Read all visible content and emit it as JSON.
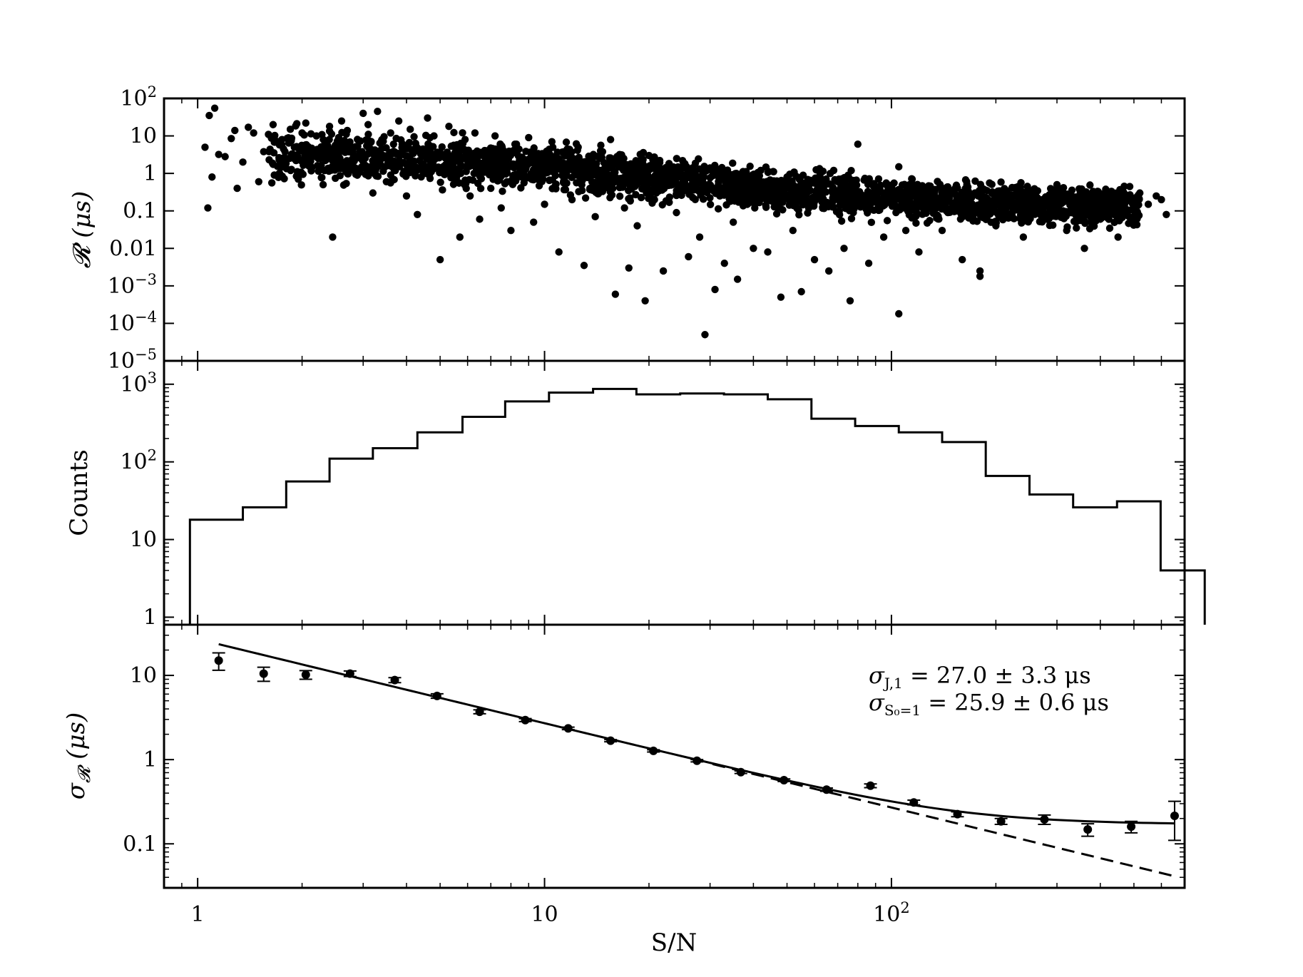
{
  "chart_data": [
    {
      "type": "scatter",
      "panel": "top",
      "ylabel_symbol": "𝓡",
      "ylabel_unit": "(μs)",
      "xscale": "log",
      "yscale": "log",
      "xlim": [
        0.8,
        700
      ],
      "ylim": [
        1e-05,
        100
      ],
      "y_tick_values": [
        1e-05,
        0.0001,
        0.001,
        0.01,
        0.1,
        1,
        10,
        100
      ],
      "y_tick_labels": [
        {
          "base": "10",
          "exp": "−5"
        },
        {
          "base": "10",
          "exp": "−4"
        },
        {
          "base": "10",
          "exp": "−3"
        },
        {
          "base": "0.01",
          "exp": ""
        },
        {
          "base": "0.1",
          "exp": ""
        },
        {
          "base": "1",
          "exp": ""
        },
        {
          "base": "10",
          "exp": ""
        },
        {
          "base": "10",
          "exp": "2"
        }
      ],
      "points": [
        [
          1.05,
          5.0
        ],
        [
          1.08,
          35
        ],
        [
          1.12,
          55
        ],
        [
          1.1,
          0.8
        ],
        [
          1.15,
          3.2
        ],
        [
          1.2,
          2.8
        ],
        [
          1.25,
          8.5
        ],
        [
          1.28,
          14
        ],
        [
          1.3,
          0.4
        ],
        [
          1.07,
          0.12
        ],
        [
          1.35,
          2.0
        ],
        [
          1.4,
          17
        ],
        [
          1.45,
          12
        ],
        [
          1.5,
          0.6
        ],
        [
          1.55,
          3.8
        ],
        [
          1.6,
          11
        ],
        [
          1.65,
          20
        ],
        [
          1.7,
          0.9
        ],
        [
          1.75,
          8
        ],
        [
          1.8,
          2.5
        ],
        [
          1.85,
          15
        ],
        [
          1.9,
          5
        ],
        [
          1.95,
          0.7
        ],
        [
          2.0,
          12
        ],
        [
          2.05,
          22
        ],
        [
          2.1,
          4
        ],
        [
          2.2,
          10
        ],
        [
          2.25,
          1.5
        ],
        [
          2.3,
          0.5
        ],
        [
          2.35,
          7
        ],
        [
          2.4,
          18
        ],
        [
          2.45,
          0.02
        ],
        [
          2.5,
          3
        ],
        [
          2.55,
          9
        ],
        [
          2.6,
          25
        ],
        [
          2.7,
          14
        ],
        [
          2.8,
          4
        ],
        [
          2.9,
          1.2
        ],
        [
          3.0,
          40
        ],
        [
          3.1,
          20
        ],
        [
          3.2,
          0.3
        ],
        [
          3.3,
          45
        ],
        [
          3.4,
          8
        ],
        [
          3.5,
          0.6
        ],
        [
          3.6,
          12
        ],
        [
          3.7,
          2
        ],
        [
          3.8,
          25
        ],
        [
          3.9,
          6
        ],
        [
          4.0,
          0.25
        ],
        [
          4.1,
          15
        ],
        [
          4.3,
          0.08
        ],
        [
          4.5,
          3
        ],
        [
          4.6,
          30
        ],
        [
          4.8,
          10
        ],
        [
          5.0,
          0.005
        ],
        [
          5.1,
          1.5
        ],
        [
          5.3,
          18
        ],
        [
          5.5,
          0.9
        ],
        [
          5.7,
          0.02
        ],
        [
          5.9,
          8
        ],
        [
          6.1,
          0.25
        ],
        [
          6.3,
          12
        ],
        [
          6.5,
          0.06
        ],
        [
          6.8,
          4
        ],
        [
          7.0,
          0.4
        ],
        [
          7.2,
          10
        ],
        [
          7.5,
          0.12
        ],
        [
          7.8,
          2.5
        ],
        [
          8.0,
          0.03
        ],
        [
          8.3,
          6
        ],
        [
          8.6,
          0.8
        ],
        [
          9.0,
          9
        ],
        [
          9.3,
          0.05
        ],
        [
          9.7,
          3
        ],
        [
          10.0,
          0.15
        ],
        [
          10.5,
          7
        ],
        [
          11.0,
          0.008
        ],
        [
          11.5,
          1.8
        ],
        [
          12.0,
          0.2
        ],
        [
          12.5,
          5
        ],
        [
          13.0,
          0.0035
        ],
        [
          13.5,
          1.2
        ],
        [
          14.0,
          0.07
        ],
        [
          14.5,
          4
        ],
        [
          15.0,
          0.5
        ],
        [
          15.5,
          8
        ],
        [
          16.0,
          0.0006
        ],
        [
          16.5,
          2
        ],
        [
          17.0,
          0.12
        ],
        [
          17.5,
          0.003
        ],
        [
          18.0,
          1.5
        ],
        [
          18.5,
          0.04
        ],
        [
          19.5,
          0.0004
        ],
        [
          20.0,
          3
        ],
        [
          21.0,
          0.3
        ],
        [
          22.0,
          0.0025
        ],
        [
          23.0,
          1.0
        ],
        [
          24.0,
          0.09
        ],
        [
          25.0,
          2.2
        ],
        [
          26.0,
          0.006
        ],
        [
          27.0,
          0.6
        ],
        [
          28.0,
          0.02
        ],
        [
          29.0,
          5e-05
        ],
        [
          30.0,
          1.4
        ],
        [
          31.0,
          0.0008
        ],
        [
          32.0,
          0.25
        ],
        [
          33.0,
          0.004
        ],
        [
          34.0,
          0.9
        ],
        [
          35.0,
          0.05
        ],
        [
          36.0,
          0.0015
        ],
        [
          38.0,
          0.6
        ],
        [
          40.0,
          0.01
        ],
        [
          42.0,
          1.2
        ],
        [
          44.0,
          0.008
        ],
        [
          46.0,
          0.3
        ],
        [
          48.0,
          0.0005
        ],
        [
          50.0,
          0.8
        ],
        [
          52.0,
          0.03
        ],
        [
          55.0,
          0.0007
        ],
        [
          58.0,
          0.5
        ],
        [
          60.0,
          0.005
        ],
        [
          63.0,
          0.2
        ],
        [
          66.0,
          0.0025
        ],
        [
          70.0,
          0.6
        ],
        [
          73.0,
          0.01
        ],
        [
          76.0,
          0.0004
        ],
        [
          80.0,
          6.0
        ],
        [
          83.0,
          0.15
        ],
        [
          86.0,
          0.004
        ],
        [
          90.0,
          0.4
        ],
        [
          95.0,
          0.02
        ],
        [
          100.0,
          0.3
        ],
        [
          105.0,
          0.00018
        ],
        [
          105.0,
          1.5
        ],
        [
          110.0,
          0.03
        ],
        [
          115.0,
          0.25
        ],
        [
          120.0,
          0.008
        ],
        [
          130.0,
          0.2
        ],
        [
          140.0,
          0.03
        ],
        [
          150.0,
          0.15
        ],
        [
          160.0,
          0.005
        ],
        [
          170.0,
          0.12
        ],
        [
          180.0,
          0.0025
        ],
        [
          180.0,
          0.0018
        ],
        [
          190.0,
          0.1
        ],
        [
          200.0,
          0.04
        ],
        [
          220.0,
          0.15
        ],
        [
          240.0,
          0.02
        ],
        [
          260.0,
          0.2
        ],
        [
          280.0,
          0.06
        ],
        [
          300.0,
          0.25
        ],
        [
          320.0,
          0.03
        ],
        [
          340.0,
          0.15
        ],
        [
          360.0,
          0.01
        ],
        [
          380.0,
          0.2
        ],
        [
          400.0,
          0.06
        ],
        [
          420.0,
          0.15
        ],
        [
          450.0,
          0.02
        ],
        [
          480.0,
          0.1
        ],
        [
          500.0,
          0.05
        ],
        [
          520.0,
          0.3
        ],
        [
          550.0,
          0.15
        ],
        [
          580.0,
          0.25
        ],
        [
          600.0,
          0.2
        ],
        [
          620.0,
          0.08
        ],
        [
          300.0,
          0.5
        ],
        [
          250.0,
          0.35
        ],
        [
          200.0,
          0.25
        ],
        [
          150.0,
          0.3
        ],
        [
          120.0,
          0.4
        ]
      ],
      "band": [
        [
          1.6,
          3.2
        ],
        [
          2.2,
          2.8
        ],
        [
          3,
          2.6
        ],
        [
          4,
          2.4
        ],
        [
          5.5,
          2.1
        ],
        [
          7.5,
          1.8
        ],
        [
          10,
          1.5
        ],
        [
          14,
          1.1
        ],
        [
          20,
          0.8
        ],
        [
          28,
          0.55
        ],
        [
          40,
          0.4
        ],
        [
          56,
          0.3
        ],
        [
          80,
          0.25
        ],
        [
          110,
          0.2
        ],
        [
          160,
          0.17
        ],
        [
          230,
          0.15
        ],
        [
          330,
          0.14
        ],
        [
          480,
          0.13
        ]
      ]
    },
    {
      "type": "histogram",
      "panel": "middle",
      "ylabel": "Counts",
      "xscale": "log",
      "yscale": "log",
      "ylim": [
        0.8,
        2000
      ],
      "y_tick_values": [
        1,
        10,
        100,
        1000
      ],
      "y_tick_labels": [
        {
          "base": "1",
          "exp": ""
        },
        {
          "base": "10",
          "exp": ""
        },
        {
          "base": "10",
          "exp": "2"
        },
        {
          "base": "10",
          "exp": "3"
        }
      ],
      "bin_edges": [
        0.95,
        1.35,
        1.8,
        2.4,
        3.2,
        4.3,
        5.8,
        7.7,
        10.3,
        13.8,
        18.4,
        24.6,
        32.9,
        44,
        58.8,
        78.6,
        105,
        140,
        187,
        250,
        334,
        447,
        597
      ],
      "counts": [
        18,
        26,
        56,
        110,
        150,
        240,
        380,
        600,
        780,
        870,
        740,
        760,
        740,
        640,
        360,
        290,
        240,
        180,
        66,
        38,
        26,
        31,
        4
      ],
      "last_edge": 800
    },
    {
      "type": "line",
      "panel": "bottom",
      "xlabel": "S/N",
      "ylabel_symbol": "σ",
      "ylabel_sub": "𝓡",
      "ylabel_unit": "(μs)",
      "xscale": "log",
      "yscale": "log",
      "ylim": [
        0.03,
        40
      ],
      "y_tick_values": [
        0.1,
        1,
        10
      ],
      "y_tick_labels": [
        {
          "base": "0.1",
          "exp": ""
        },
        {
          "base": "1",
          "exp": ""
        },
        {
          "base": "10",
          "exp": ""
        }
      ],
      "x_tick_values": [
        1,
        10,
        100
      ],
      "x_tick_labels": [
        {
          "base": "1",
          "exp": ""
        },
        {
          "base": "10",
          "exp": ""
        },
        {
          "base": "10",
          "exp": "2"
        }
      ],
      "measurements": [
        {
          "x": 1.15,
          "y": 15,
          "err": 3.5
        },
        {
          "x": 1.55,
          "y": 10.5,
          "err": 2.0
        },
        {
          "x": 2.05,
          "y": 10.2,
          "err": 1.2
        },
        {
          "x": 2.75,
          "y": 10.5,
          "err": 0.8
        },
        {
          "x": 3.7,
          "y": 8.8,
          "err": 0.6
        },
        {
          "x": 4.9,
          "y": 5.7,
          "err": 0.35
        },
        {
          "x": 6.5,
          "y": 3.7,
          "err": 0.2
        },
        {
          "x": 8.8,
          "y": 2.95,
          "err": 0.12
        },
        {
          "x": 11.7,
          "y": 2.35,
          "err": 0.08
        },
        {
          "x": 15.5,
          "y": 1.68,
          "err": 0.05
        },
        {
          "x": 20.6,
          "y": 1.27,
          "err": 0.04
        },
        {
          "x": 27.5,
          "y": 0.97,
          "err": 0.03
        },
        {
          "x": 36.8,
          "y": 0.71,
          "err": 0.025
        },
        {
          "x": 49,
          "y": 0.57,
          "err": 0.02
        },
        {
          "x": 65,
          "y": 0.44,
          "err": 0.02
        },
        {
          "x": 87,
          "y": 0.49,
          "err": 0.025
        },
        {
          "x": 116,
          "y": 0.31,
          "err": 0.02
        },
        {
          "x": 155,
          "y": 0.225,
          "err": 0.015
        },
        {
          "x": 207,
          "y": 0.185,
          "err": 0.015
        },
        {
          "x": 276,
          "y": 0.195,
          "err": 0.025
        },
        {
          "x": 368,
          "y": 0.148,
          "err": 0.025
        },
        {
          "x": 491,
          "y": 0.16,
          "err": 0.025
        },
        {
          "x": 655,
          "y": 0.215,
          "err": 0.105
        }
      ],
      "fit": {
        "sigma_J1": 27.0,
        "sigma_S0": 25.9,
        "floor": 0.17,
        "x_range": [
          1.15,
          655
        ]
      },
      "annotations": [
        {
          "symbol": "σ",
          "sub": "J,1",
          "text": " = 27.0 ± 3.3 μs"
        },
        {
          "symbol": "σ",
          "sub": "S₀=1",
          "text": " = 25.9 ± 0.6 μs"
        }
      ]
    }
  ]
}
